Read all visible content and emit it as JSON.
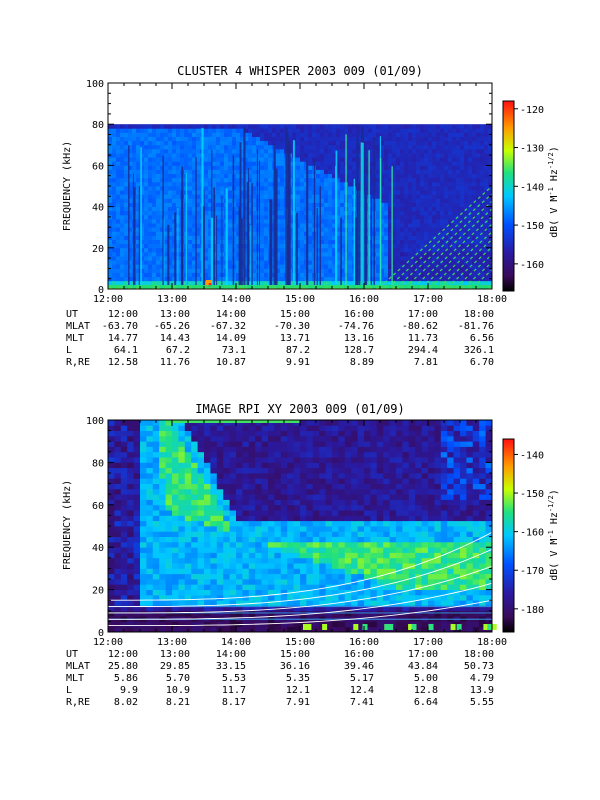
{
  "chart_data": [
    {
      "type": "heatmap",
      "title": "CLUSTER 4 WHISPER 2003 009 (01/09)",
      "xlabel": "",
      "ylabel": "FREQUENCY (kHz)",
      "xlim": [
        12,
        18
      ],
      "ylim": [
        0,
        100
      ],
      "x_ticks": [
        "12:00",
        "13:00",
        "14:00",
        "15:00",
        "16:00",
        "17:00",
        "18:00"
      ],
      "y_ticks": [
        "0",
        "20",
        "40",
        "60",
        "80",
        "100"
      ],
      "data_ceiling_khz": 80,
      "colorbar": {
        "label": "dB( V M-1 Hz-1/2)",
        "label_main": "dB( V M",
        "label_exp1": "-1",
        "label_mid": " Hz",
        "label_exp2": "-1/2",
        "label_end": ")",
        "ticks": [
          "-120",
          "-130",
          "-140",
          "-150",
          "-160"
        ],
        "range": [
          -167,
          -118
        ]
      },
      "ephemeris": {
        "rows": [
          {
            "label": "UT",
            "values": [
              "12:00",
              "13:00",
              "14:00",
              "15:00",
              "16:00",
              "17:00",
              "18:00"
            ]
          },
          {
            "label": "MLAT",
            "values": [
              "-63.70",
              "-65.26",
              "-67.32",
              "-70.30",
              "-74.76",
              "-80.62",
              "-81.76"
            ]
          },
          {
            "label": "MLT",
            "values": [
              "14.77",
              "14.43",
              "14.09",
              "13.71",
              "13.16",
              "11.73",
              "6.56"
            ]
          },
          {
            "label": "L",
            "values": [
              "64.1",
              "67.2",
              "73.1",
              "87.2",
              "128.7",
              "294.4",
              "326.1"
            ]
          },
          {
            "label": "R,RE",
            "values": [
              "12.58",
              "11.76",
              "10.87",
              "9.91",
              "8.89",
              "7.81",
              "6.70"
            ]
          }
        ]
      }
    },
    {
      "type": "heatmap",
      "title": "IMAGE RPI XY 2003 009 (01/09)",
      "xlabel": "",
      "ylabel": "FREQUENCY (kHz)",
      "xlim": [
        12,
        18
      ],
      "ylim": [
        0,
        100
      ],
      "x_ticks": [
        "12:00",
        "13:00",
        "14:00",
        "15:00",
        "16:00",
        "17:00",
        "18:00"
      ],
      "y_ticks": [
        "0",
        "20",
        "40",
        "60",
        "80",
        "100"
      ],
      "colorbar": {
        "label": "dB( V M-1 Hz-1/2)",
        "label_main": "dB( V M",
        "label_exp1": "-1",
        "label_mid": " Hz",
        "label_exp2": "-1/2",
        "label_end": ")",
        "ticks": [
          "-140",
          "-150",
          "-160",
          "-170",
          "-180"
        ],
        "range": [
          -186,
          -136
        ]
      },
      "ephemeris": {
        "rows": [
          {
            "label": "UT",
            "values": [
              "12:00",
              "13:00",
              "14:00",
              "15:00",
              "16:00",
              "17:00",
              "18:00"
            ]
          },
          {
            "label": "MLAT",
            "values": [
              "25.80",
              "29.85",
              "33.15",
              "36.16",
              "39.46",
              "43.84",
              "50.73"
            ]
          },
          {
            "label": "MLT",
            "values": [
              "5.86",
              "5.70",
              "5.53",
              "5.35",
              "5.17",
              "5.00",
              "4.79"
            ]
          },
          {
            "label": "L",
            "values": [
              "9.9",
              "10.9",
              "11.7",
              "12.1",
              "12.4",
              "12.8",
              "13.9"
            ]
          },
          {
            "label": "R,RE",
            "values": [
              "8.02",
              "8.21",
              "8.17",
              "7.91",
              "7.41",
              "6.64",
              "5.55"
            ]
          }
        ]
      }
    }
  ]
}
